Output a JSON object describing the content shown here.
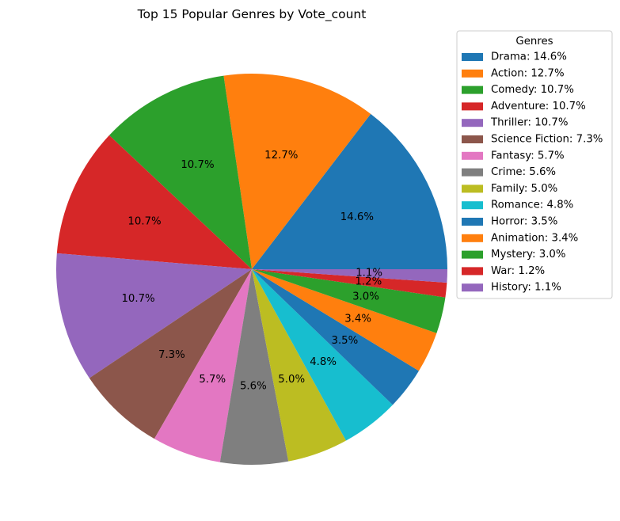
{
  "chart_data": {
    "type": "pie",
    "title": "Top 15 Popular Genres by Vote_count",
    "legend_title": "Genres",
    "legend_position": "right",
    "start_angle_deg": 0,
    "direction": "counterclockwise",
    "categories": [
      "Drama",
      "Action",
      "Comedy",
      "Adventure",
      "Thriller",
      "Science Fiction",
      "Fantasy",
      "Crime",
      "Family",
      "Romance",
      "Horror",
      "Animation",
      "Mystery",
      "War",
      "History"
    ],
    "values": [
      14.6,
      12.7,
      10.7,
      10.7,
      10.7,
      7.3,
      5.7,
      5.6,
      5.0,
      4.8,
      3.5,
      3.4,
      3.0,
      1.2,
      1.1
    ],
    "value_labels": [
      "14.6%",
      "12.7%",
      "10.7%",
      "10.7%",
      "10.7%",
      "7.3%",
      "5.7%",
      "5.6%",
      "5.0%",
      "4.8%",
      "3.5%",
      "3.4%",
      "3.0%",
      "1.2%",
      "1.1%"
    ],
    "legend_labels": [
      "Drama: 14.6%",
      "Action: 12.7%",
      "Comedy: 10.7%",
      "Adventure: 10.7%",
      "Thriller: 10.7%",
      "Science Fiction: 7.3%",
      "Fantasy: 5.7%",
      "Crime: 5.6%",
      "Family: 5.0%",
      "Romance: 4.8%",
      "Horror: 3.5%",
      "Animation: 3.4%",
      "Mystery: 3.0%",
      "War: 1.2%",
      "History: 1.1%"
    ],
    "colors": [
      "#1f77b4",
      "#ff7f0e",
      "#2ca02c",
      "#d62728",
      "#9467bd",
      "#8c564b",
      "#e377c2",
      "#7f7f7f",
      "#bcbd22",
      "#17becf",
      "#1f77b4",
      "#ff7f0e",
      "#2ca02c",
      "#d62728",
      "#9467bd"
    ]
  }
}
